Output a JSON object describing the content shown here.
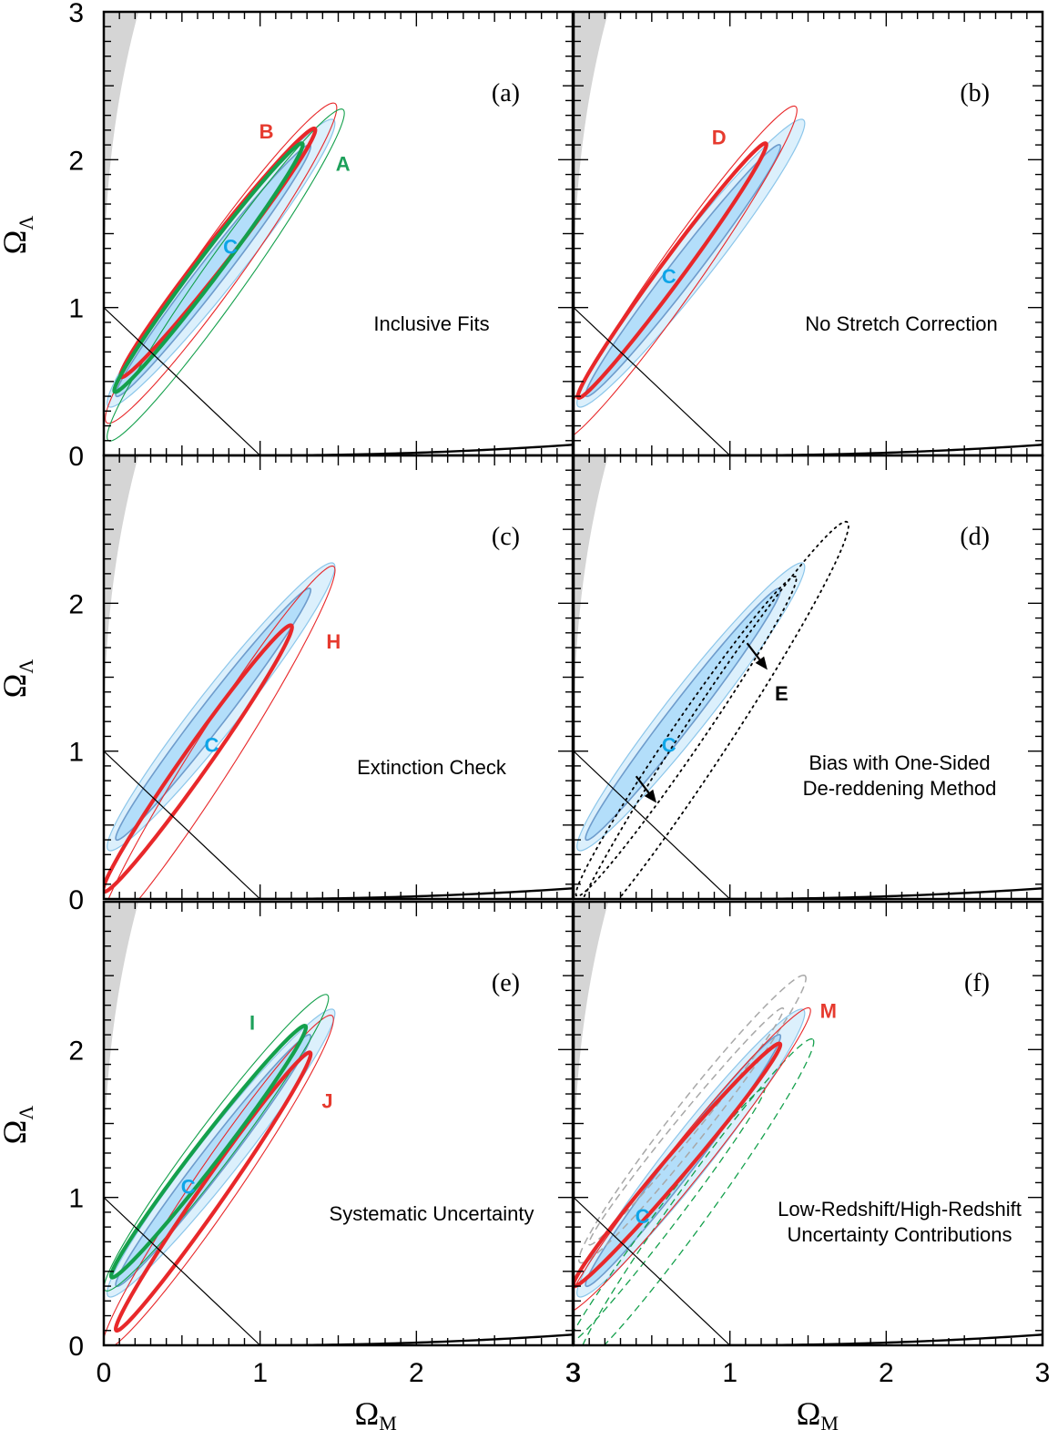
{
  "colors": {
    "inner": "#b3defa",
    "outer": "#dcf0fc",
    "inner_edge": "#6e9ccc",
    "outer_edge": "#8cc6ea",
    "red": "#e8282a",
    "green": "#14a04c",
    "grey_region": "#d5d5d5",
    "grey_dashed": "#a8a8a8",
    "label_cyan": "#0ea5e8",
    "label_red": "#e63a2e",
    "label_green": "#1da05a"
  },
  "chart_data": {
    "type": "contour",
    "xlim": [
      0,
      3
    ],
    "ylim": [
      0,
      3
    ],
    "x_ticks": [
      "0",
      "1",
      "2",
      "3"
    ],
    "y_ticks": [
      "0",
      "1",
      "2",
      "3"
    ],
    "x_ticks_right": [
      "3",
      "1",
      "2",
      "3"
    ],
    "xlabel": "Ω",
    "xlabel_sub": "M",
    "ylabel": "Ω",
    "ylabel_sub": "Λ",
    "panels": [
      {
        "id": "a",
        "letter": "(a)",
        "text_lines": [
          "Inclusive Fits"
        ],
        "contours": [
          {
            "label": "C",
            "level": "68%",
            "style": "fill-inner",
            "center": [
              0.7,
              1.25
            ],
            "half_span": [
              0.62,
              0.85
            ],
            "half_width": 0.085
          },
          {
            "label": "C",
            "level": "90%",
            "style": "fill-outer",
            "center": [
              0.75,
              1.3
            ],
            "half_span": [
              0.72,
              0.97
            ],
            "half_width": 0.14
          },
          {
            "label": "B",
            "level": "68%",
            "style": "red-thick",
            "center": [
              0.73,
              1.37
            ],
            "half_span": [
              0.62,
              0.84
            ],
            "half_width": 0.08
          },
          {
            "label": "B",
            "level": "90%",
            "style": "red-thin",
            "center": [
              0.75,
              1.3
            ],
            "half_span": [
              0.73,
              1.08
            ],
            "half_width": 0.15
          },
          {
            "label": "A",
            "level": "68%",
            "style": "green-thick",
            "center": [
              0.67,
              1.27
            ],
            "half_span": [
              0.6,
              0.84
            ],
            "half_width": 0.075
          },
          {
            "label": "A",
            "level": "90%",
            "style": "green-thin",
            "center": [
              0.78,
              1.22
            ],
            "half_span": [
              0.75,
              1.12
            ],
            "half_width": 0.14
          }
        ],
        "labels": [
          {
            "text": "B",
            "x": 1.04,
            "y": 2.18,
            "color": "red"
          },
          {
            "text": "A",
            "x": 1.53,
            "y": 1.96,
            "color": "green"
          },
          {
            "text": "C",
            "x": 0.81,
            "y": 1.4,
            "color": "cyan"
          }
        ],
        "arrows": []
      },
      {
        "id": "b",
        "letter": "(b)",
        "text_lines": [
          "No Stretch Correction"
        ],
        "contours": [
          {
            "label": "C",
            "level": "68%",
            "style": "fill-inner",
            "center": [
              0.7,
              1.25
            ],
            "half_span": [
              0.62,
              0.85
            ],
            "half_width": 0.085
          },
          {
            "label": "C",
            "level": "90%",
            "style": "fill-outer",
            "center": [
              0.75,
              1.3
            ],
            "half_span": [
              0.72,
              0.97
            ],
            "half_width": 0.14
          },
          {
            "label": "D",
            "level": "68%",
            "style": "red-thick",
            "center": [
              0.63,
              1.25
            ],
            "half_span": [
              0.6,
              0.86
            ],
            "half_width": 0.075
          },
          {
            "label": "D",
            "level": "90%",
            "style": "red-thin",
            "center": [
              0.67,
              1.23
            ],
            "half_span": [
              0.75,
              1.13
            ],
            "half_width": 0.14
          }
        ],
        "labels": [
          {
            "text": "D",
            "x": 0.93,
            "y": 2.14,
            "color": "red"
          },
          {
            "text": "C",
            "x": 0.61,
            "y": 1.2,
            "color": "cyan"
          }
        ],
        "arrows": []
      },
      {
        "id": "c",
        "letter": "(c)",
        "text_lines": [
          "Extinction Check"
        ],
        "contours": [
          {
            "label": "C",
            "level": "68%",
            "style": "fill-inner",
            "center": [
              0.7,
              1.25
            ],
            "half_span": [
              0.62,
              0.85
            ],
            "half_width": 0.085
          },
          {
            "label": "C",
            "level": "90%",
            "style": "fill-outer",
            "center": [
              0.75,
              1.3
            ],
            "half_span": [
              0.72,
              0.97
            ],
            "half_width": 0.14
          },
          {
            "label": "H",
            "level": "68%",
            "style": "red-thick",
            "center": [
              0.6,
              0.95
            ],
            "half_span": [
              0.6,
              0.9
            ],
            "half_width": 0.085
          },
          {
            "label": "H",
            "level": "90%",
            "style": "red-thin",
            "center": [
              0.72,
              1.0
            ],
            "half_span": [
              0.75,
              1.25
            ],
            "half_width": 0.14
          }
        ],
        "labels": [
          {
            "text": "H",
            "x": 1.47,
            "y": 1.73,
            "color": "red"
          },
          {
            "text": "C",
            "x": 0.69,
            "y": 1.03,
            "color": "cyan"
          }
        ],
        "arrows": []
      },
      {
        "id": "d",
        "letter": "(d)",
        "text_lines": [
          "Bias with One-Sided",
          "De-reddening Method"
        ],
        "contours": [
          {
            "label": "C",
            "level": "68%",
            "style": "fill-inner",
            "center": [
              0.7,
              1.25
            ],
            "half_span": [
              0.62,
              0.85
            ],
            "half_width": 0.085
          },
          {
            "label": "C",
            "level": "90%",
            "style": "fill-outer",
            "center": [
              0.75,
              1.3
            ],
            "half_span": [
              0.72,
              0.97
            ],
            "half_width": 0.14
          },
          {
            "label": "E",
            "level": "68%",
            "style": "black-dotted",
            "center": [
              0.72,
              1.1
            ],
            "half_span": [
              0.7,
              1.08
            ],
            "half_width": 0.1
          },
          {
            "label": "E",
            "level": "90%",
            "style": "black-dotted",
            "center": [
              0.85,
              1.1
            ],
            "half_span": [
              0.9,
              1.45
            ],
            "half_width": 0.15
          }
        ],
        "labels": [
          {
            "text": "E",
            "x": 1.33,
            "y": 1.38,
            "color": "black"
          },
          {
            "text": "C",
            "x": 0.61,
            "y": 1.03,
            "color": "cyan"
          }
        ],
        "arrows": [
          {
            "from": [
              1.11,
              1.73
            ],
            "to": [
              1.24,
              1.55
            ]
          },
          {
            "from": [
              0.4,
              0.83
            ],
            "to": [
              0.53,
              0.65
            ]
          }
        ]
      },
      {
        "id": "e",
        "letter": "(e)",
        "text_lines": [
          "Systematic Uncertainty"
        ],
        "contours": [
          {
            "label": "C",
            "level": "68%",
            "style": "fill-inner",
            "center": [
              0.7,
              1.25
            ],
            "half_span": [
              0.62,
              0.85
            ],
            "half_width": 0.085
          },
          {
            "label": "C",
            "level": "90%",
            "style": "fill-outer",
            "center": [
              0.75,
              1.3
            ],
            "half_span": [
              0.72,
              0.97
            ],
            "half_width": 0.14
          },
          {
            "label": "I",
            "level": "68%",
            "style": "green-thick",
            "center": [
              0.67,
              1.31
            ],
            "half_span": [
              0.62,
              0.85
            ],
            "half_width": 0.08
          },
          {
            "label": "I",
            "level": "90%",
            "style": "green-thin",
            "center": [
              0.72,
              1.37
            ],
            "half_span": [
              0.71,
              1.0
            ],
            "half_width": 0.13
          },
          {
            "label": "J",
            "level": "68%",
            "style": "red-thick",
            "center": [
              0.7,
              1.04
            ],
            "half_span": [
              0.62,
              0.94
            ],
            "half_width": 0.08
          },
          {
            "label": "J",
            "level": "90%",
            "style": "red-thin",
            "center": [
              0.73,
              1.1
            ],
            "half_span": [
              0.73,
              1.13
            ],
            "half_width": 0.14
          }
        ],
        "labels": [
          {
            "text": "I",
            "x": 0.95,
            "y": 2.17,
            "color": "green"
          },
          {
            "text": "J",
            "x": 1.43,
            "y": 1.64,
            "color": "red"
          },
          {
            "text": "C",
            "x": 0.54,
            "y": 1.06,
            "color": "cyan"
          }
        ],
        "arrows": []
      },
      {
        "id": "f",
        "letter": "(f)",
        "text_lines": [
          "Low-Redshift/High-Redshift",
          "Uncertainty Contributions"
        ],
        "contours": [
          {
            "label": "C",
            "level": "68%",
            "style": "fill-inner",
            "center": [
              0.7,
              1.25
            ],
            "half_span": [
              0.62,
              0.85
            ],
            "half_width": 0.085
          },
          {
            "label": "C",
            "level": "90%",
            "style": "fill-outer",
            "center": [
              0.75,
              1.3
            ],
            "half_span": [
              0.72,
              0.97
            ],
            "half_width": 0.14
          },
          {
            "label": "M",
            "level": "68%",
            "style": "red-thick",
            "center": [
              0.66,
              1.22
            ],
            "half_span": [
              0.66,
              0.82
            ],
            "half_width": 0.075
          },
          {
            "label": "M",
            "level": "90%",
            "style": "red-thin",
            "center": [
              0.73,
              1.25
            ],
            "half_span": [
              0.78,
              1.03
            ],
            "half_width": 0.12
          },
          {
            "label": "",
            "level": "68%",
            "style": "grey-dashed",
            "center": [
              0.72,
              1.48
            ],
            "half_span": [
              0.62,
              0.8
            ],
            "half_width": 0.07
          },
          {
            "label": "",
            "level": "90%",
            "style": "grey-dashed",
            "center": [
              0.76,
              1.53
            ],
            "half_span": [
              0.72,
              0.97
            ],
            "half_width": 0.12
          },
          {
            "label": "",
            "level": "68%",
            "style": "green-dashed",
            "center": [
              0.6,
              0.88
            ],
            "half_span": [
              0.62,
              0.86
            ],
            "half_width": 0.07
          },
          {
            "label": "",
            "level": "90%",
            "style": "green-dashed",
            "center": [
              0.78,
              0.97
            ],
            "half_span": [
              0.75,
              1.1
            ],
            "half_width": 0.12
          }
        ],
        "labels": [
          {
            "text": "M",
            "x": 1.63,
            "y": 2.25,
            "color": "red"
          },
          {
            "text": "C",
            "x": 0.44,
            "y": 0.86,
            "color": "cyan"
          }
        ],
        "arrows": []
      }
    ]
  }
}
